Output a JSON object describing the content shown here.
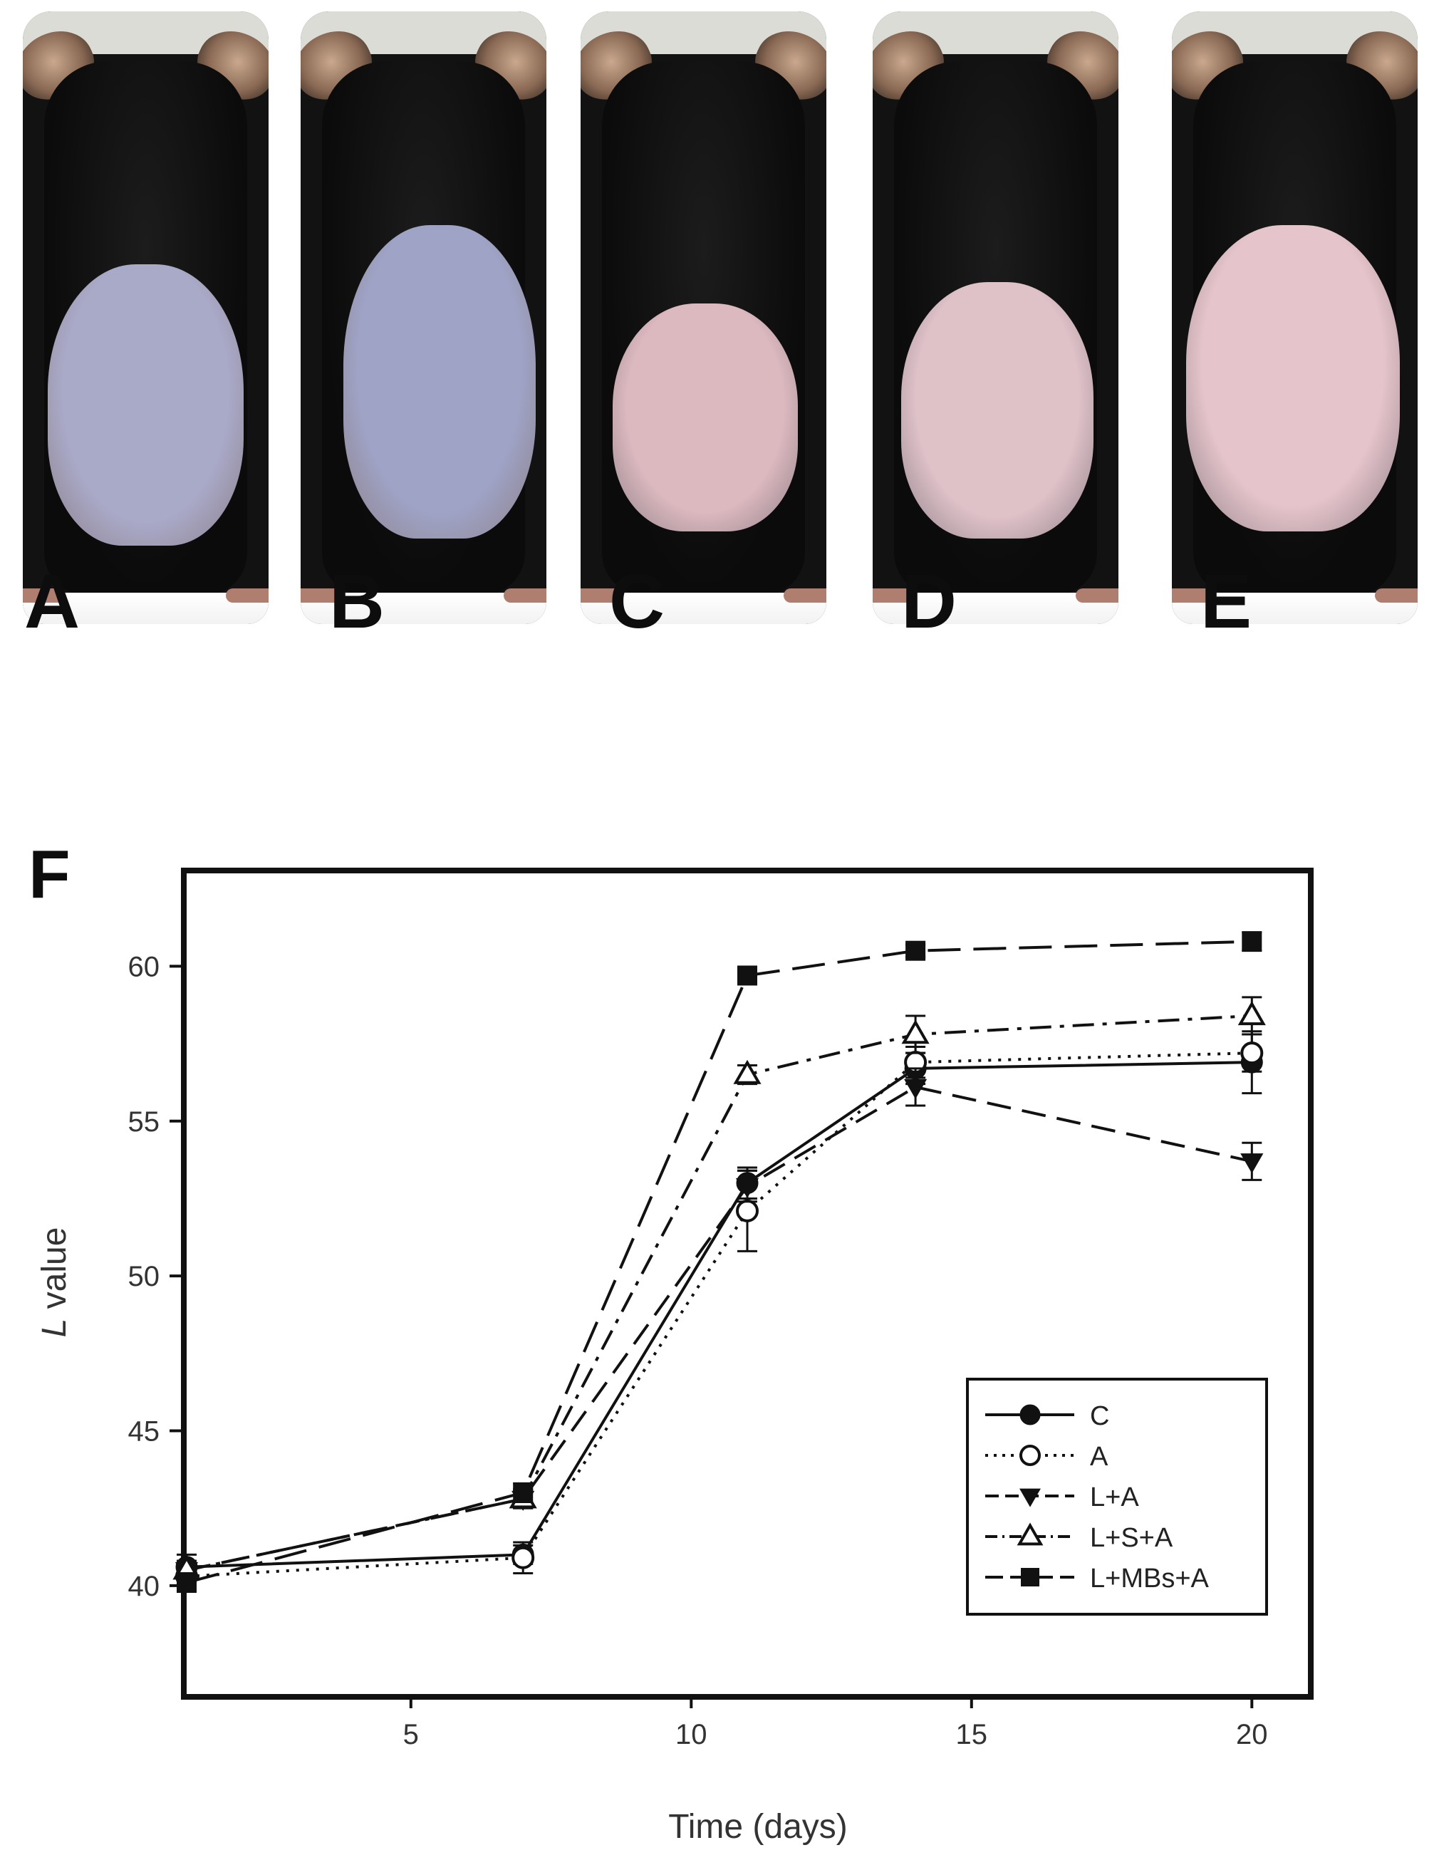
{
  "panels": [
    {
      "letter": "A",
      "skin": "#a9a9c8",
      "note": "blue-grey"
    },
    {
      "letter": "B",
      "skin": "#9fa3c6",
      "note": "blue"
    },
    {
      "letter": "C",
      "skin": "#dcb8bf",
      "note": "pink"
    },
    {
      "letter": "D",
      "skin": "#dfc1c8",
      "note": "pink"
    },
    {
      "letter": "E",
      "skin": "#e6c4cb",
      "note": "pink"
    }
  ],
  "chart_label": "F",
  "chart_data": {
    "type": "line",
    "xlabel": "Time (days)",
    "ylabel_italic": "L",
    "ylabel_rest": " value",
    "xlim": [
      1,
      21
    ],
    "ylim": [
      36.5,
      63
    ],
    "xticks": [
      5,
      10,
      15,
      20
    ],
    "yticks": [
      40,
      45,
      50,
      55,
      60
    ],
    "grid": false,
    "legend_position": "lower-right",
    "x": [
      1,
      7,
      11,
      14,
      20
    ],
    "series": [
      {
        "name": "C",
        "marker": "circle-filled",
        "dash": "solid",
        "values": [
          40.6,
          41.0,
          53.0,
          56.7,
          56.9
        ],
        "err": [
          0.4,
          0.3,
          0.5,
          0.5,
          1.0
        ]
      },
      {
        "name": "A",
        "marker": "circle-open",
        "dash": "dotted",
        "values": [
          40.3,
          40.9,
          52.1,
          56.9,
          57.2
        ],
        "err": [
          0.3,
          0.5,
          1.3,
          0.5,
          0.6
        ]
      },
      {
        "name": "L+A",
        "marker": "triangle-down-filled",
        "dash": "dashed",
        "values": [
          40.5,
          42.8,
          52.9,
          56.1,
          53.7
        ],
        "err": [
          0.3,
          0.3,
          0.5,
          0.6,
          0.6
        ]
      },
      {
        "name": "L+S+A",
        "marker": "triangle-up-open",
        "dash": "dashdot",
        "values": [
          40.5,
          42.8,
          56.5,
          57.8,
          58.4
        ],
        "err": [
          0.3,
          0.3,
          0.3,
          0.6,
          0.6
        ]
      },
      {
        "name": "L+MBs+A",
        "marker": "square-filled",
        "dash": "longdash",
        "values": [
          40.1,
          43.0,
          59.7,
          60.5,
          60.8
        ],
        "err": [
          0.3,
          0.3,
          0.2,
          0.2,
          0.3
        ]
      }
    ]
  }
}
